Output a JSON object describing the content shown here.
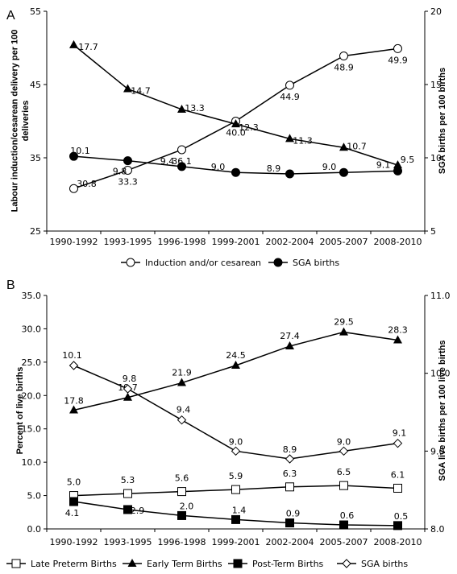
{
  "chart_data": [
    {
      "type": "line",
      "panel_label": "A",
      "categories": [
        "1990-1992",
        "1993-1995",
        "1996-1998",
        "1999-2001",
        "2002-2004",
        "2005-2007",
        "2008-2010"
      ],
      "ylabel": "Labour induction/cesarean delivery per 100 deliveries",
      "ylabel_lines": [
        "Labour induction/cesarean delivery per 100",
        "deliveries"
      ],
      "y2label": "SGA births per 100 births",
      "ylim": [
        25,
        55
      ],
      "yticks": [
        "25",
        "35",
        "45",
        "55"
      ],
      "yticks_values": [
        25,
        35,
        45,
        55
      ],
      "y2lim": [
        5,
        20
      ],
      "y2ticks": [
        "5",
        "10",
        "15",
        "20"
      ],
      "y2ticks_values": [
        5,
        10,
        15,
        20
      ],
      "grid": false,
      "legend_position": "bottom",
      "series": [
        {
          "name": "Induction and/or cesarean",
          "axis": "left",
          "marker": "circle-open",
          "values": [
            30.8,
            33.3,
            36.1,
            40.0,
            44.9,
            48.9,
            49.9
          ],
          "labels": [
            "30.8",
            "33.3",
            "36.1",
            "40.0",
            "44.9",
            "48.9",
            "49.9"
          ]
        },
        {
          "name": "SGA births",
          "axis": "right",
          "marker": "circle-filled",
          "values": [
            10.1,
            9.8,
            9.4,
            9.0,
            8.9,
            9.0,
            9.1
          ],
          "labels": [
            "10.1",
            "9.8",
            "9.4",
            "9.0",
            "8.9",
            "9.0",
            "9.1"
          ]
        },
        {
          "name": "",
          "axis": "right",
          "marker": "triangle-filled",
          "values": [
            17.7,
            14.7,
            13.3,
            12.3,
            11.3,
            10.7,
            9.5
          ],
          "labels": [
            "17.7",
            "14.7",
            "13.3",
            "12.3",
            "11.3",
            "10.7",
            "9.5"
          ]
        }
      ]
    },
    {
      "type": "line",
      "panel_label": "B",
      "categories": [
        "1990-1992",
        "1993-1995",
        "1996-1998",
        "1999-2001",
        "2002-2004",
        "2005-2007",
        "2008-2010"
      ],
      "ylabel": "Percent of live births",
      "y2label": "SGA live births per 100 live births",
      "ylim": [
        0,
        35
      ],
      "yticks": [
        "0.0",
        "5.0",
        "10.0",
        "15.0",
        "20.0",
        "25.0",
        "30.0",
        "35.0"
      ],
      "yticks_values": [
        0,
        5,
        10,
        15,
        20,
        25,
        30,
        35
      ],
      "y2lim": [
        8,
        11
      ],
      "y2ticks": [
        "8.0",
        "9.0",
        "10.0",
        "11.0"
      ],
      "y2ticks_values": [
        8,
        9,
        10,
        11
      ],
      "grid": false,
      "legend_position": "bottom",
      "series": [
        {
          "name": "Late Preterm Births",
          "axis": "left",
          "marker": "square-open",
          "values": [
            5.0,
            5.3,
            5.6,
            5.9,
            6.3,
            6.5,
            6.1
          ],
          "labels": [
            "5.0",
            "5.3",
            "5.6",
            "5.9",
            "6.3",
            "6.5",
            "6.1"
          ]
        },
        {
          "name": "Early Term Births",
          "axis": "left",
          "marker": "triangle-filled",
          "values": [
            17.8,
            19.7,
            21.9,
            24.5,
            27.4,
            29.5,
            28.3
          ],
          "labels": [
            "17.8",
            "19.7",
            "21.9",
            "24.5",
            "27.4",
            "29.5",
            "28.3"
          ]
        },
        {
          "name": "Post-Term Births",
          "axis": "left",
          "marker": "square-filled",
          "values": [
            4.1,
            2.9,
            2.0,
            1.4,
            0.9,
            0.6,
            0.5
          ],
          "labels": [
            "4.1",
            "2.9",
            "2.0",
            "1.4",
            "0.9",
            "0.6",
            "0.5"
          ]
        },
        {
          "name": "SGA births",
          "axis": "right",
          "marker": "diamond-open",
          "values": [
            10.1,
            9.8,
            9.4,
            9.0,
            8.9,
            9.0,
            9.1
          ],
          "labels": [
            "10.1",
            "9.8",
            "9.4",
            "9.0",
            "8.9",
            "9.0",
            "9.1"
          ]
        }
      ]
    }
  ]
}
